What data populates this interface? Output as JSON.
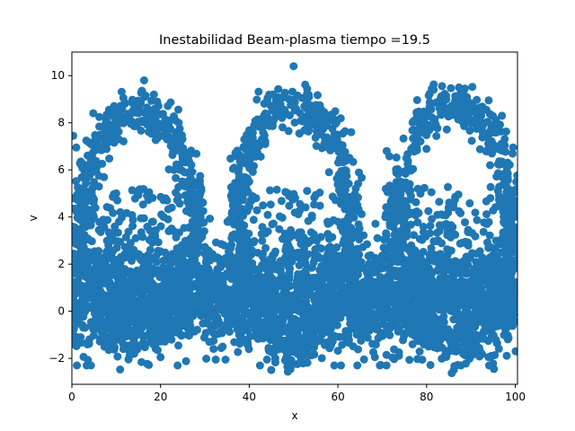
{
  "colors": {
    "marker": "#1f77b4",
    "axes": "#000000",
    "background": "#ffffff"
  },
  "chart_data": {
    "type": "scatter",
    "title": "Inestabilidad Beam-plasma  tiempo =19.5",
    "xlabel": "x",
    "ylabel": "v",
    "xlim": [
      0,
      100.5
    ],
    "ylim": [
      -3.1,
      11.0
    ],
    "xticks": [
      0,
      20,
      40,
      60,
      80,
      100
    ],
    "xtick_labels": [
      "0",
      "20",
      "40",
      "60",
      "80",
      "100"
    ],
    "yticks": [
      -2,
      0,
      2,
      4,
      6,
      8,
      10
    ],
    "ytick_labels": [
      "−2",
      "0",
      "2",
      "4",
      "6",
      "8",
      "10"
    ],
    "grid": false,
    "legend": "none",
    "series": [
      {
        "structure": "beam-plasma phase space: dense thermal core around v=0 plus three trapped-particle vortices",
        "core": {
          "v_mean": 0.6,
          "v_spread": 1.1,
          "points": 2600
        },
        "vortices": [
          {
            "x_center": 15,
            "v_center": 3.6,
            "x_halfwidth": 14,
            "v_amplitude": 5.3
          },
          {
            "x_center": 50,
            "v_center": 3.6,
            "x_halfwidth": 14,
            "v_amplitude": 5.5
          },
          {
            "x_center": 86,
            "v_center": 3.6,
            "x_halfwidth": 14,
            "v_amplitude": 5.6
          }
        ],
        "points": [
          [
            0.3,
            7.45
          ],
          [
            1.0,
            6.95
          ],
          [
            16.3,
            9.8
          ],
          [
            18.5,
            9.2
          ],
          [
            50.0,
            10.4
          ],
          [
            87.3,
            9.5
          ],
          [
            94.0,
            8.95
          ],
          [
            97.0,
            8.3
          ],
          [
            99.5,
            6.95
          ],
          [
            95.2,
            -2.45
          ],
          [
            48.6,
            -2.35
          ],
          [
            20.0,
            -1.95
          ],
          [
            13.0,
            -1.9
          ],
          [
            92.0,
            -1.85
          ],
          [
            44.0,
            -2.05
          ],
          [
            1.0,
            -1.3
          ],
          [
            8.0,
            -1.1
          ],
          [
            31.0,
            -1.3
          ],
          [
            63.0,
            7.6
          ],
          [
            71.0,
            6.8
          ],
          [
            23.0,
            6.0
          ],
          [
            10.0,
            5.0
          ],
          [
            40.0,
            5.5
          ],
          [
            74.0,
            4.5
          ],
          [
            58.0,
            5.9
          ]
        ]
      }
    ]
  }
}
